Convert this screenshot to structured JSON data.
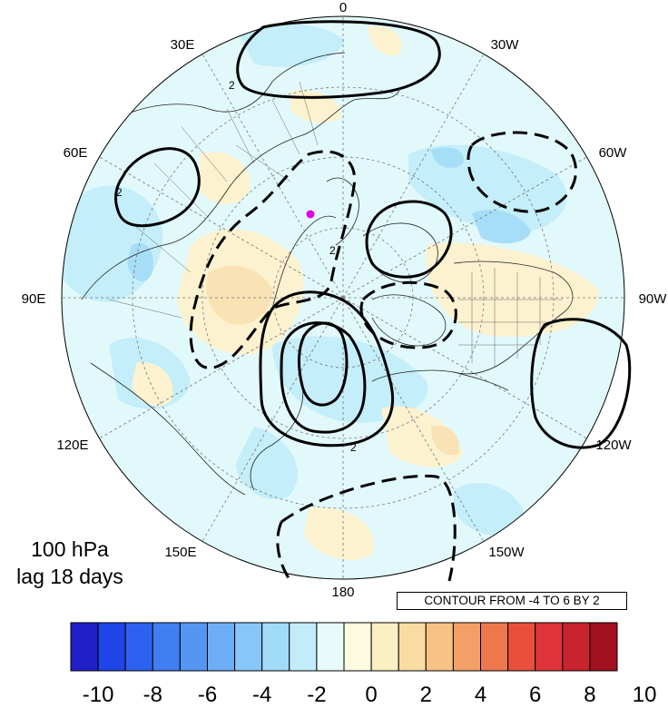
{
  "map": {
    "projection": "north polar stereographic",
    "longitude_labels": [
      "0",
      "30W",
      "60W",
      "90W",
      "120W",
      "150W",
      "180",
      "150E",
      "120E",
      "90E",
      "60E",
      "30E"
    ],
    "contour_label": "2",
    "marker_color": "#e000e0"
  },
  "title": {
    "level": "100 hPa",
    "lag": "lag 18 days"
  },
  "contour_info": "CONTOUR FROM -4 TO 6 BY 2",
  "colorbar": {
    "labels": [
      "-10",
      "-8",
      "-6",
      "-4",
      "-2",
      "0",
      "2",
      "4",
      "6",
      "8",
      "10"
    ],
    "colors": [
      "#2020c8",
      "#1f44e8",
      "#2d62f0",
      "#3f7ff2",
      "#5596f5",
      "#6eaef7",
      "#88c6f9",
      "#a2daf9",
      "#c2ecfa",
      "#e8fbfc",
      "#fdfbe0",
      "#fcefc4",
      "#f9dca2",
      "#f6c385",
      "#f3a068",
      "#ee784e",
      "#e8503d",
      "#e0333a",
      "#c8232e",
      "#a0101e"
    ]
  }
}
